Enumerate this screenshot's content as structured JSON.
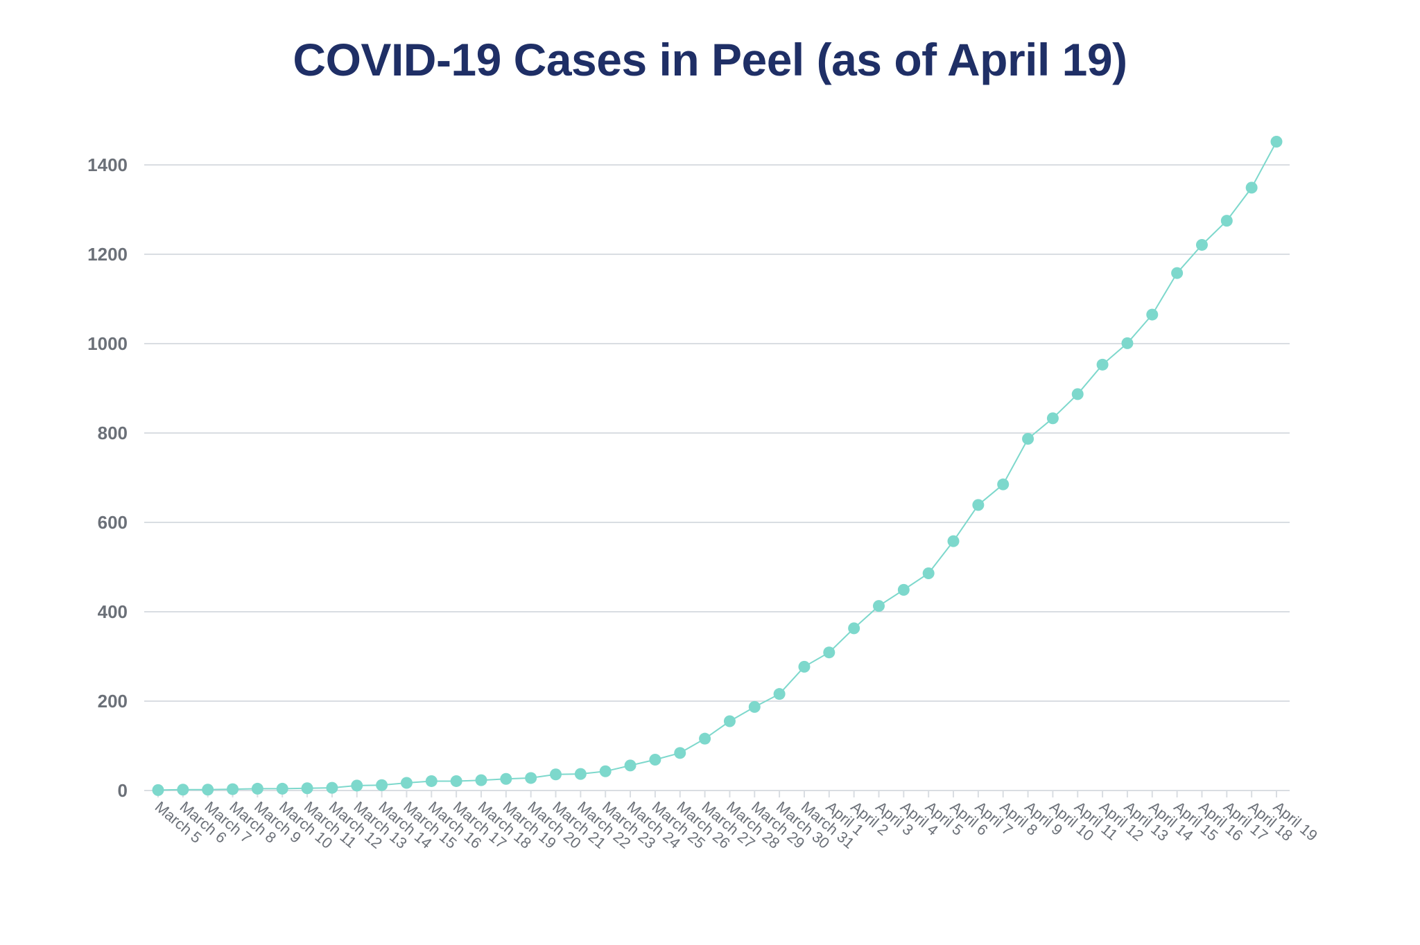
{
  "chart_data": {
    "type": "line",
    "title": "COVID-19 Cases in Peel (as of April 19)",
    "xlabel": "",
    "ylabel": "",
    "ylim": [
      0,
      1400
    ],
    "yticks": [
      0,
      200,
      400,
      600,
      800,
      1000,
      1200,
      1400
    ],
    "grid": true,
    "legend": "none",
    "colors": {
      "series": "#7dd8cc",
      "grid": "#d9dde2",
      "title": "#1f2f66",
      "tick": "#6b7078"
    },
    "categories": [
      "March 5",
      "March 6",
      "March 7",
      "March 8",
      "March 9",
      "March 10",
      "March 11",
      "March 12",
      "March 13",
      "March 14",
      "March 15",
      "March 16",
      "March 17",
      "March 18",
      "March 19",
      "March 20",
      "March 21",
      "March 22",
      "March 23",
      "March 24",
      "March 25",
      "March 26",
      "March 27",
      "March 28",
      "March 29",
      "March 30",
      "March 31",
      "April 1",
      "April 2",
      "April 3",
      "April 4",
      "April 5",
      "April 6",
      "April 7",
      "April 8",
      "April 9",
      "April 10",
      "April 11",
      "April 12",
      "April 13",
      "April 14",
      "April 15",
      "April 16",
      "April 17",
      "April 18",
      "April 19"
    ],
    "series": [
      {
        "values": [
          1,
          2,
          2,
          3,
          4,
          4,
          5,
          6,
          11,
          12,
          17,
          21,
          21,
          23,
          26,
          28,
          36,
          37,
          43,
          56,
          69,
          84,
          116,
          155,
          187,
          216,
          277,
          309,
          363,
          413,
          449,
          486,
          558,
          639,
          685,
          787,
          833,
          887,
          953,
          1001,
          1065,
          1158,
          1221,
          1275,
          1349,
          1452
        ]
      }
    ]
  }
}
